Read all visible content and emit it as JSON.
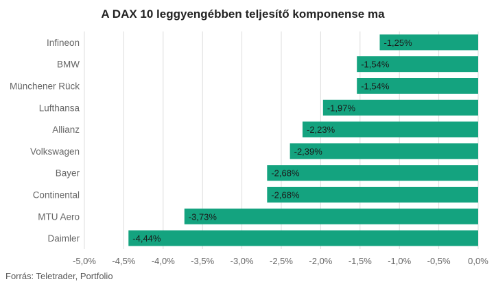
{
  "chart_data": {
    "type": "bar",
    "orientation": "horizontal",
    "title": "A DAX 10 leggyengébben teljesítő komponense ma",
    "categories": [
      "Infineon",
      "BMW",
      "Münchener Rück",
      "Lufthansa",
      "Allianz",
      "Volkswagen",
      "Bayer",
      "Continental",
      "MTU Aero",
      "Daimler"
    ],
    "values": [
      -1.25,
      -1.54,
      -1.54,
      -1.97,
      -2.23,
      -2.39,
      -2.68,
      -2.68,
      -3.73,
      -4.44
    ],
    "data_labels": [
      "-1,25%",
      "-1,54%",
      "-1,54%",
      "-1,97%",
      "-2,23%",
      "-2,39%",
      "-2,68%",
      "-2,68%",
      "-3,73%",
      "-4,44%"
    ],
    "xlim": [
      -5.0,
      0.0
    ],
    "x_ticks": [
      -5.0,
      -4.5,
      -4.0,
      -3.5,
      -3.0,
      -2.5,
      -2.0,
      -1.5,
      -1.0,
      -0.5,
      0.0
    ],
    "x_tick_labels": [
      "-5,0%",
      "-4,5%",
      "-4,0%",
      "-3,5%",
      "-3,0%",
      "-2,5%",
      "-2,0%",
      "-1,5%",
      "-1,0%",
      "-0,5%",
      "0,0%"
    ],
    "grid": true,
    "bar_color": "#14a37f",
    "xlabel": "",
    "ylabel": ""
  },
  "source": "Forrás: Teletrader, Portfolio"
}
